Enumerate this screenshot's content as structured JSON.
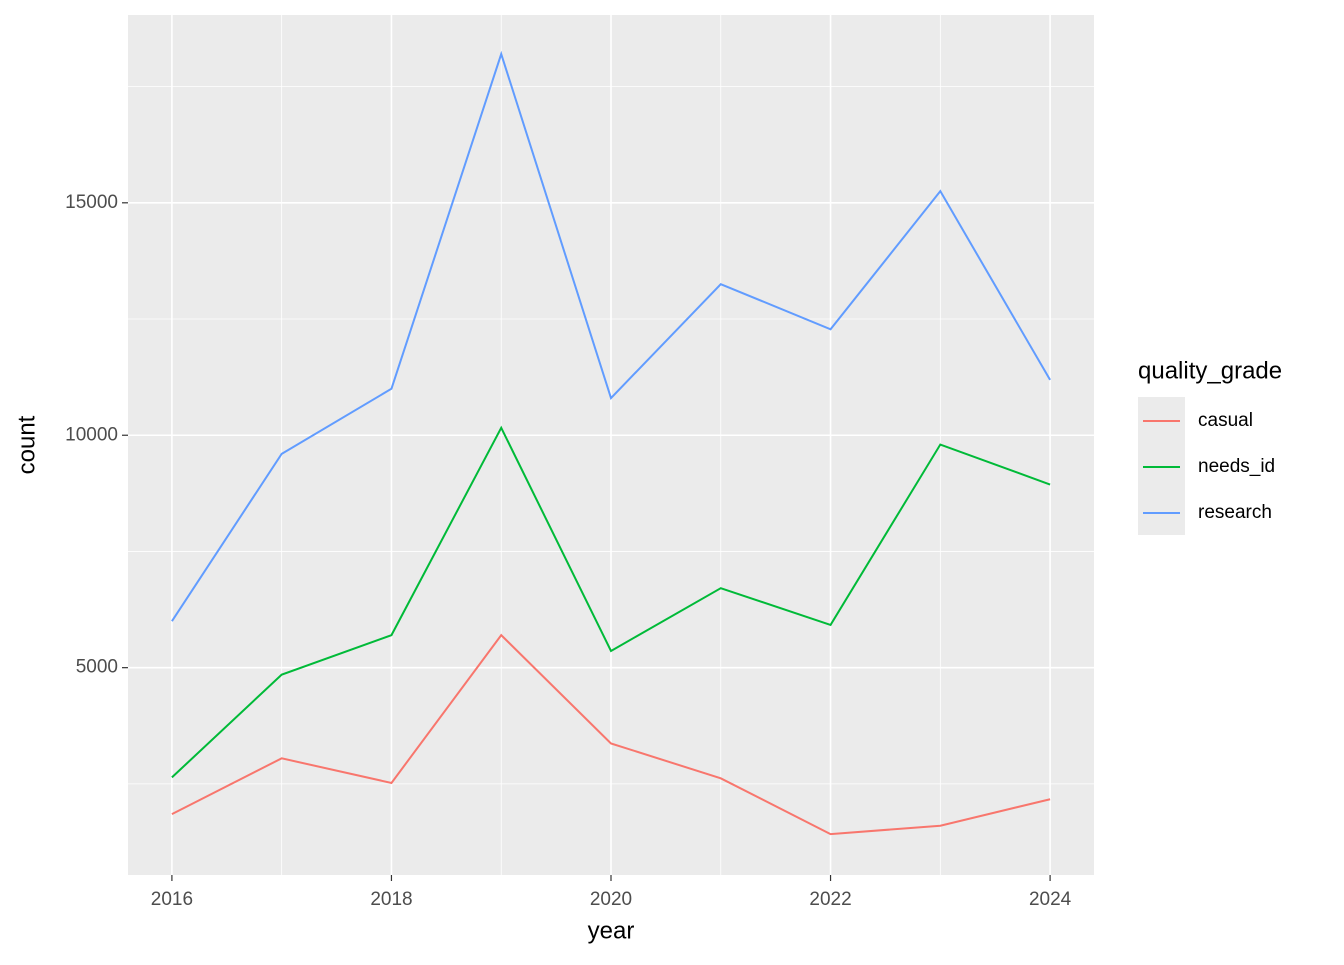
{
  "chart_data": {
    "type": "line",
    "x_label": "year",
    "y_label": "count",
    "x": [
      2016,
      2017,
      2018,
      2019,
      2020,
      2021,
      2022,
      2023,
      2024
    ],
    "series": [
      {
        "name": "casual",
        "color": "#f8766d",
        "values": [
          1850,
          3050,
          2520,
          5700,
          3370,
          2620,
          1420,
          1600,
          2170
        ]
      },
      {
        "name": "needs_id",
        "color": "#00ba38",
        "values": [
          2640,
          4850,
          5700,
          10160,
          5360,
          6710,
          5920,
          9800,
          8940
        ]
      },
      {
        "name": "research",
        "color": "#619cff",
        "values": [
          6000,
          9600,
          11000,
          18200,
          10800,
          13250,
          12280,
          15250,
          11190
        ]
      }
    ],
    "legend_title": "quality_grade",
    "legend_position": "right",
    "xlim": [
      2015.6,
      2024.4
    ],
    "xticks": [
      2016,
      2018,
      2020,
      2022,
      2024
    ],
    "ylim": [
      540,
      19040
    ],
    "yticks": [
      5000,
      10000,
      15000
    ],
    "x_minor_grid": [
      2017,
      2019,
      2021,
      2023
    ],
    "y_minor_grid": [
      2500,
      7500,
      12500,
      17500
    ],
    "grid": true
  }
}
